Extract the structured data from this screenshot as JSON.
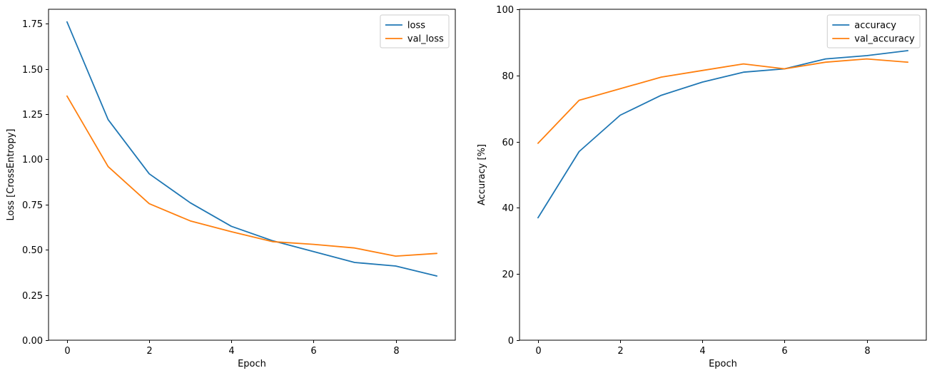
{
  "figure": {
    "background": "#ffffff"
  },
  "chart_data": [
    {
      "type": "line",
      "x": [
        0,
        1,
        2,
        3,
        4,
        5,
        6,
        7,
        8,
        9
      ],
      "series": [
        {
          "name": "loss",
          "color": "#1f77b4",
          "values": [
            1.76,
            1.22,
            0.92,
            0.76,
            0.63,
            0.55,
            0.49,
            0.43,
            0.41,
            0.355
          ]
        },
        {
          "name": "val_loss",
          "color": "#ff7f0e",
          "values": [
            1.35,
            0.96,
            0.755,
            0.66,
            0.6,
            0.545,
            0.53,
            0.51,
            0.465,
            0.48
          ]
        }
      ],
      "title": "",
      "xlabel": "Epoch",
      "ylabel": "Loss [CrossEntropy]",
      "xlim": [
        -0.45,
        9.45
      ],
      "ylim": [
        0,
        1.83
      ],
      "xticks": [
        0,
        2,
        4,
        6,
        8
      ],
      "xtick_labels": [
        "0",
        "2",
        "4",
        "6",
        "8"
      ],
      "yticks": [
        0,
        0.25,
        0.5,
        0.75,
        1.0,
        1.25,
        1.5,
        1.75
      ],
      "ytick_labels": [
        "0.00",
        "0.25",
        "0.50",
        "0.75",
        "1.00",
        "1.25",
        "1.50",
        "1.75"
      ],
      "grid": false,
      "legend": {
        "position": "top-right",
        "entries": [
          "loss",
          "val_loss"
        ]
      }
    },
    {
      "type": "line",
      "x": [
        0,
        1,
        2,
        3,
        4,
        5,
        6,
        7,
        8,
        9
      ],
      "series": [
        {
          "name": "accuracy",
          "color": "#1f77b4",
          "values": [
            37,
            57,
            68,
            74,
            78,
            81,
            82,
            85,
            86,
            87.5
          ]
        },
        {
          "name": "val_accuracy",
          "color": "#ff7f0e",
          "values": [
            59.5,
            72.5,
            76,
            79.5,
            81.5,
            83.5,
            82,
            84,
            85,
            84
          ]
        }
      ],
      "title": "",
      "xlabel": "Epoch",
      "ylabel": "Accuracy [%]",
      "xlim": [
        -0.45,
        9.45
      ],
      "ylim": [
        0,
        100
      ],
      "xticks": [
        0,
        2,
        4,
        6,
        8
      ],
      "xtick_labels": [
        "0",
        "2",
        "4",
        "6",
        "8"
      ],
      "yticks": [
        0,
        20,
        40,
        60,
        80,
        100
      ],
      "ytick_labels": [
        "0",
        "20",
        "40",
        "60",
        "80",
        "100"
      ],
      "grid": false,
      "legend": {
        "position": "top-right",
        "entries": [
          "accuracy",
          "val_accuracy"
        ]
      }
    }
  ],
  "colors": {
    "series_blue": "#1f77b4",
    "series_orange": "#ff7f0e",
    "axis": "#000000",
    "legend_border": "#cccccc"
  }
}
